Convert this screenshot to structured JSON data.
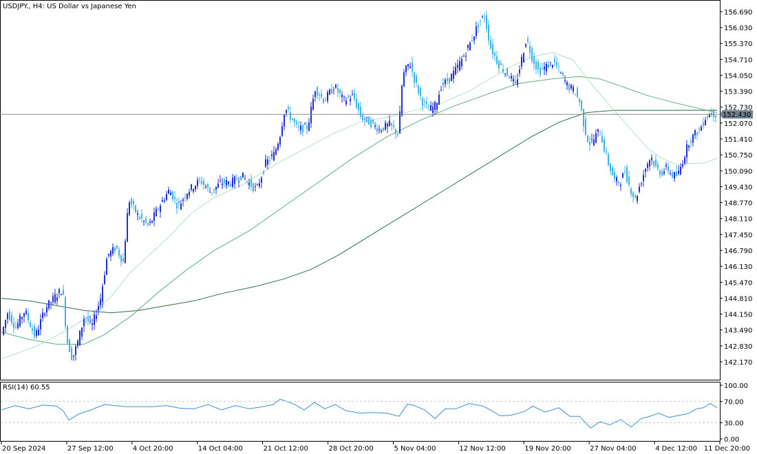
{
  "window": {
    "title": "USDJPY., H4:  US Dollar vs Japanese Yen"
  },
  "colors": {
    "bull": "#1f2fd8",
    "bear": "#3ab4e6",
    "ma_fast": "#b6e0c6",
    "ma_mid": "#5fae7c",
    "ma_slow": "#2f6f46",
    "rsi": "#3a8fd8",
    "grid": "#c8c8c8",
    "frame": "#000000",
    "price_badge": "#6d7f8c"
  },
  "chart_data": {
    "type": "candlestick",
    "title": "USDJPY., H4:  US Dollar vs Japanese Yen",
    "ylim": [
      141.6,
      157.0
    ],
    "y_ticks": [
      "156.690",
      "156.030",
      "155.370",
      "154.710",
      "154.050",
      "153.390",
      "152.730",
      "152.070",
      "151.410",
      "150.750",
      "150.090",
      "149.430",
      "148.770",
      "148.110",
      "147.450",
      "146.790",
      "146.130",
      "145.470",
      "144.810",
      "144.150",
      "143.490",
      "142.830",
      "142.170"
    ],
    "x_ticks": [
      "20 Sep 2024",
      "27 Sep 12:00",
      "4 Oct 20:00",
      "14 Oct 04:00",
      "21 Oct 12:00",
      "28 Oct 20:00",
      "5 Nov 04:00",
      "12 Nov 12:00",
      "19 Nov 20:00",
      "27 Nov 04:00",
      "4 Dec 12:00",
      "11 Dec 20:00"
    ],
    "current_price": "152.430",
    "price_path": [
      [
        0,
        143.2
      ],
      [
        10,
        144.2
      ],
      [
        22,
        143.6
      ],
      [
        35,
        144.3
      ],
      [
        50,
        143.2
      ],
      [
        65,
        144.4
      ],
      [
        80,
        144.9
      ],
      [
        90,
        145.2
      ],
      [
        96,
        143.1
      ],
      [
        104,
        142.3
      ],
      [
        112,
        143.0
      ],
      [
        122,
        144.1
      ],
      [
        132,
        143.6
      ],
      [
        145,
        144.8
      ],
      [
        155,
        146.6
      ],
      [
        168,
        146.9
      ],
      [
        178,
        146.3
      ],
      [
        186,
        148.9
      ],
      [
        200,
        148.2
      ],
      [
        215,
        147.8
      ],
      [
        230,
        148.6
      ],
      [
        245,
        149.3
      ],
      [
        258,
        148.6
      ],
      [
        270,
        149.2
      ],
      [
        290,
        149.7
      ],
      [
        305,
        149.2
      ],
      [
        320,
        149.6
      ],
      [
        335,
        149.6
      ],
      [
        350,
        149.9
      ],
      [
        360,
        149.6
      ],
      [
        372,
        149.3
      ],
      [
        385,
        150.4
      ],
      [
        398,
        150.8
      ],
      [
        406,
        151.6
      ],
      [
        413,
        152.7
      ],
      [
        424,
        152.2
      ],
      [
        432,
        151.8
      ],
      [
        446,
        151.9
      ],
      [
        457,
        153.5
      ],
      [
        470,
        153.0
      ],
      [
        485,
        153.6
      ],
      [
        498,
        153.0
      ],
      [
        512,
        153.2
      ],
      [
        524,
        152.3
      ],
      [
        536,
        152.1
      ],
      [
        550,
        151.8
      ],
      [
        565,
        152.0
      ],
      [
        578,
        151.6
      ],
      [
        584,
        154.0
      ],
      [
        594,
        154.6
      ],
      [
        602,
        153.8
      ],
      [
        612,
        153.0
      ],
      [
        622,
        152.6
      ],
      [
        632,
        152.8
      ],
      [
        640,
        153.6
      ],
      [
        652,
        153.9
      ],
      [
        662,
        154.3
      ],
      [
        672,
        154.8
      ],
      [
        684,
        155.5
      ],
      [
        696,
        156.3
      ],
      [
        703,
        156.5
      ],
      [
        712,
        155.2
      ],
      [
        722,
        154.6
      ],
      [
        732,
        154.2
      ],
      [
        740,
        154.0
      ],
      [
        748,
        153.6
      ],
      [
        756,
        154.6
      ],
      [
        764,
        155.6
      ],
      [
        772,
        154.8
      ],
      [
        782,
        154.2
      ],
      [
        792,
        154.4
      ],
      [
        804,
        154.6
      ],
      [
        814,
        154.1
      ],
      [
        824,
        153.6
      ],
      [
        834,
        153.4
      ],
      [
        842,
        152.9
      ],
      [
        848,
        151.9
      ],
      [
        855,
        151.2
      ],
      [
        862,
        151.4
      ],
      [
        870,
        151.8
      ],
      [
        878,
        150.9
      ],
      [
        884,
        150.3
      ],
      [
        892,
        149.7
      ],
      [
        900,
        149.6
      ],
      [
        907,
        150.1
      ],
      [
        914,
        149.4
      ],
      [
        922,
        148.9
      ],
      [
        930,
        149.6
      ],
      [
        938,
        150.3
      ],
      [
        945,
        150.7
      ],
      [
        952,
        150.2
      ],
      [
        960,
        150.0
      ],
      [
        968,
        150.2
      ],
      [
        976,
        149.9
      ],
      [
        984,
        149.9
      ],
      [
        992,
        150.6
      ],
      [
        1000,
        151.3
      ],
      [
        1008,
        151.6
      ],
      [
        1016,
        151.8
      ],
      [
        1024,
        152.3
      ],
      [
        1032,
        152.5
      ],
      [
        1040,
        152.43
      ]
    ],
    "ma_fast": [
      [
        0,
        142.3
      ],
      [
        50,
        142.8
      ],
      [
        90,
        143.4
      ],
      [
        130,
        144.1
      ],
      [
        160,
        144.9
      ],
      [
        185,
        145.8
      ],
      [
        215,
        146.6
      ],
      [
        245,
        147.4
      ],
      [
        275,
        148.3
      ],
      [
        310,
        149.0
      ],
      [
        350,
        149.5
      ],
      [
        395,
        150.3
      ],
      [
        440,
        151.0
      ],
      [
        480,
        151.6
      ],
      [
        520,
        152.1
      ],
      [
        560,
        152.3
      ],
      [
        600,
        152.6
      ],
      [
        640,
        152.9
      ],
      [
        680,
        153.4
      ],
      [
        710,
        153.9
      ],
      [
        740,
        154.4
      ],
      [
        770,
        154.8
      ],
      [
        800,
        155.0
      ],
      [
        830,
        154.7
      ],
      [
        860,
        153.6
      ],
      [
        890,
        152.6
      ],
      [
        915,
        151.8
      ],
      [
        940,
        151.0
      ],
      [
        960,
        150.6
      ],
      [
        985,
        150.3
      ],
      [
        1000,
        150.4
      ],
      [
        1020,
        150.4
      ],
      [
        1040,
        150.6
      ]
    ],
    "ma_mid": [
      [
        0,
        143.4
      ],
      [
        40,
        143.1
      ],
      [
        80,
        142.9
      ],
      [
        120,
        142.9
      ],
      [
        150,
        143.3
      ],
      [
        190,
        144.1
      ],
      [
        230,
        145.1
      ],
      [
        270,
        146.0
      ],
      [
        310,
        146.8
      ],
      [
        360,
        147.6
      ],
      [
        410,
        148.6
      ],
      [
        460,
        149.6
      ],
      [
        510,
        150.6
      ],
      [
        560,
        151.5
      ],
      [
        610,
        152.2
      ],
      [
        660,
        152.8
      ],
      [
        700,
        153.2
      ],
      [
        750,
        153.7
      ],
      [
        800,
        153.9
      ],
      [
        840,
        154.0
      ],
      [
        870,
        153.9
      ],
      [
        900,
        153.6
      ],
      [
        940,
        153.2
      ],
      [
        980,
        152.9
      ],
      [
        1010,
        152.7
      ],
      [
        1040,
        152.5
      ]
    ],
    "ma_slow": [
      [
        0,
        144.8
      ],
      [
        40,
        144.7
      ],
      [
        80,
        144.5
      ],
      [
        120,
        144.3
      ],
      [
        160,
        144.2
      ],
      [
        200,
        144.3
      ],
      [
        240,
        144.5
      ],
      [
        280,
        144.7
      ],
      [
        320,
        145.0
      ],
      [
        370,
        145.3
      ],
      [
        410,
        145.6
      ],
      [
        450,
        146.0
      ],
      [
        490,
        146.6
      ],
      [
        530,
        147.3
      ],
      [
        570,
        148.0
      ],
      [
        610,
        148.7
      ],
      [
        650,
        149.4
      ],
      [
        690,
        150.1
      ],
      [
        730,
        150.8
      ],
      [
        770,
        151.5
      ],
      [
        810,
        152.1
      ],
      [
        850,
        152.5
      ],
      [
        890,
        152.6
      ],
      [
        930,
        152.6
      ],
      [
        970,
        152.6
      ],
      [
        1010,
        152.6
      ],
      [
        1040,
        152.6
      ]
    ],
    "rsi": {
      "label": "RSI(14) 60.55",
      "value": 60.55,
      "ylim": [
        0,
        100
      ],
      "levels": [
        30,
        70
      ],
      "y_ticks": [
        "100.00",
        "70.00",
        "30.00",
        "0.00"
      ],
      "path": [
        [
          0,
          56
        ],
        [
          20,
          60
        ],
        [
          40,
          58
        ],
        [
          60,
          61
        ],
        [
          80,
          63
        ],
        [
          90,
          50
        ],
        [
          98,
          37
        ],
        [
          112,
          44
        ],
        [
          130,
          56
        ],
        [
          150,
          62
        ],
        [
          165,
          64
        ],
        [
          180,
          58
        ],
        [
          200,
          62
        ],
        [
          220,
          58
        ],
        [
          240,
          64
        ],
        [
          260,
          55
        ],
        [
          280,
          58
        ],
        [
          300,
          62
        ],
        [
          320,
          56
        ],
        [
          340,
          60
        ],
        [
          360,
          58
        ],
        [
          380,
          58
        ],
        [
          395,
          66
        ],
        [
          405,
          72
        ],
        [
          412,
          73
        ],
        [
          425,
          63
        ],
        [
          440,
          56
        ],
        [
          455,
          66
        ],
        [
          470,
          58
        ],
        [
          485,
          62
        ],
        [
          500,
          55
        ],
        [
          520,
          46
        ],
        [
          540,
          51
        ],
        [
          560,
          46
        ],
        [
          578,
          44
        ],
        [
          590,
          63
        ],
        [
          600,
          64
        ],
        [
          615,
          52
        ],
        [
          630,
          40
        ],
        [
          645,
          54
        ],
        [
          660,
          58
        ],
        [
          680,
          64
        ],
        [
          700,
          63
        ],
        [
          712,
          51
        ],
        [
          725,
          45
        ],
        [
          740,
          42
        ],
        [
          760,
          53
        ],
        [
          772,
          59
        ],
        [
          790,
          52
        ],
        [
          810,
          56
        ],
        [
          826,
          44
        ],
        [
          840,
          40
        ],
        [
          856,
          22
        ],
        [
          870,
          30
        ],
        [
          884,
          28
        ],
        [
          900,
          34
        ],
        [
          915,
          24
        ],
        [
          930,
          36
        ],
        [
          940,
          43
        ],
        [
          955,
          46
        ],
        [
          970,
          42
        ],
        [
          985,
          42
        ],
        [
          998,
          49
        ],
        [
          1010,
          54
        ],
        [
          1020,
          60
        ],
        [
          1030,
          64
        ],
        [
          1040,
          60
        ]
      ]
    }
  }
}
